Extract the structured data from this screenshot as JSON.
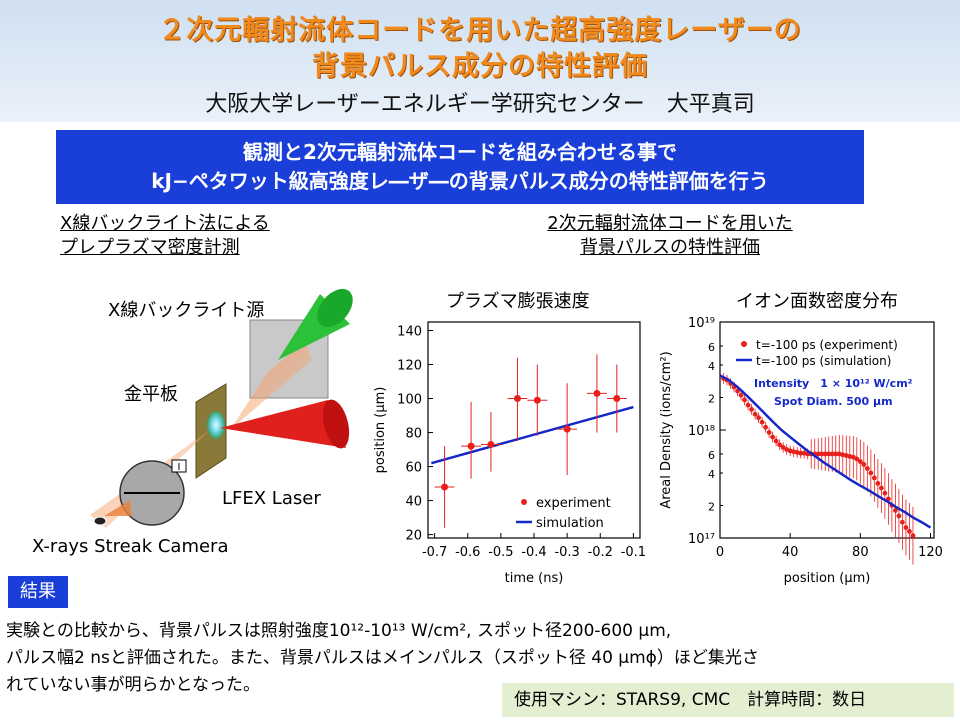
{
  "header": {
    "title_line1": "２次元輻射流体コードを用いた超高強度レーザーの",
    "title_line2": "背景パルス成分の特性評価",
    "author": "大阪大学レーザーエネルギー学研究センター　大平真司"
  },
  "banner": {
    "line1": "観測と2次元輻射流体コードを組み合わせる事で",
    "line2": "kJ−ペタワット級高強度レ―ザ―の背景パルス成分の特性評価を行う"
  },
  "left_section": {
    "line1": "X線バックライト法による",
    "line2": "プレプラズマ密度計測"
  },
  "right_section": {
    "line1": "2次元輻射流体コードを用いた",
    "line2": "背景パルスの特性評価"
  },
  "setup": {
    "backlight_label": "X線バックライト源",
    "target_label": "金平板",
    "laser_label": "LFEX Laser",
    "camera_label": "X-rays Streak Camera",
    "box_label": "I"
  },
  "chart1_title": "プラズマ膨張速度",
  "chart2_title": "イオン面数密度分布",
  "chart_data": [
    {
      "type": "scatter",
      "xlabel": "time (ns)",
      "ylabel": "position (μm)",
      "xlim": [
        -0.72,
        -0.08
      ],
      "ylim": [
        18,
        145
      ],
      "xticks": [
        -0.7,
        -0.6,
        -0.5,
        -0.4,
        -0.3,
        -0.2,
        -0.1
      ],
      "xtick_labels": [
        "-0.7",
        "-0.6",
        "-0.5",
        "-0.4",
        "-0.3",
        "-0.2",
        "-0.1"
      ],
      "yticks": [
        20,
        40,
        60,
        80,
        100,
        120,
        140
      ],
      "legend_position": "bottom-right",
      "series": [
        {
          "name": "experiment",
          "color": "#e8201c",
          "points": [
            {
              "x": -0.67,
              "y": 48,
              "xerr": 0.03,
              "ylo": 24,
              "yhi": 72
            },
            {
              "x": -0.59,
              "y": 72,
              "xerr": 0.03,
              "ylo": 53,
              "yhi": 98
            },
            {
              "x": -0.53,
              "y": 73,
              "xerr": 0.03,
              "ylo": 57,
              "yhi": 92
            },
            {
              "x": -0.45,
              "y": 100,
              "xerr": 0.03,
              "ylo": 75,
              "yhi": 124
            },
            {
              "x": -0.39,
              "y": 99,
              "xerr": 0.03,
              "ylo": 78,
              "yhi": 120
            },
            {
              "x": -0.3,
              "y": 82,
              "xerr": 0.03,
              "ylo": 55,
              "yhi": 109
            },
            {
              "x": -0.21,
              "y": 103,
              "xerr": 0.03,
              "ylo": 80,
              "yhi": 126
            },
            {
              "x": -0.15,
              "y": 100,
              "xerr": 0.03,
              "ylo": 80,
              "yhi": 120
            }
          ]
        },
        {
          "name": "simulation",
          "color": "#1428c8",
          "line": [
            [
              -0.71,
              62
            ],
            [
              -0.1,
              95
            ]
          ]
        }
      ]
    },
    {
      "type": "scatter",
      "xlabel": "position (μm)",
      "ylabel": "Areal Density (ions/cm²)",
      "xlim": [
        0,
        122
      ],
      "ylog": true,
      "ylim": [
        1e+17,
        1e+19
      ],
      "xticks": [
        0,
        40,
        80,
        120
      ],
      "ytick_labels": [
        "10¹⁷",
        "2",
        "4",
        "6",
        "10¹⁸",
        "2",
        "4",
        "6",
        "10¹⁹"
      ],
      "legend_position": "top-right",
      "annotation_line1": "Intensity　1 × 10¹² W/cm²",
      "annotation_line2": "Spot Diam.  500 μm",
      "series": [
        {
          "name": "t=-100 ps (experiment)",
          "color": "#e8201c",
          "x": [
            2,
            4,
            6,
            8,
            10,
            12,
            14,
            16,
            18,
            20,
            22,
            24,
            26,
            28,
            30,
            32,
            34,
            36,
            38,
            40,
            42,
            44,
            46,
            48,
            50,
            52,
            54,
            56,
            58,
            60,
            62,
            64,
            66,
            68,
            70,
            72,
            74,
            76,
            78,
            80,
            82,
            84,
            86,
            88,
            90,
            92,
            94,
            96,
            98,
            100,
            102,
            104,
            106,
            108,
            110
          ],
          "y": [
            3e+18,
            2.9e+18,
            2.7e+18,
            2.5e+18,
            2.3e+18,
            2.1e+18,
            1.9e+18,
            1.7e+18,
            1.55e+18,
            1.4e+18,
            1.3e+18,
            1.18e+18,
            1.06e+18,
            9.5e+17,
            8.6e+17,
            7.9e+17,
            7.3e+17,
            6.9e+17,
            6.6e+17,
            6.4e+17,
            6.3e+17,
            6.2e+17,
            6.1e+17,
            6.1e+17,
            6e+17,
            6e+17,
            6e+17,
            6e+17,
            6e+17,
            6e+17,
            6e+17,
            6e+17,
            6e+17,
            6e+17,
            5.9e+17,
            5.8e+17,
            5.7e+17,
            5.6e+17,
            5.4e+17,
            5.1e+17,
            4.8e+17,
            4.4e+17,
            4e+17,
            3.6e+17,
            3.2e+17,
            2.9e+17,
            2.6e+17,
            2.3e+17,
            2e+17,
            1.8e+17,
            1.6e+17,
            1.4e+17,
            1.25e+17,
            1.15e+17,
            1.05e+17
          ]
        },
        {
          "name": "t=-100 ps (simulation)",
          "color": "#1428c8",
          "x": [
            0,
            5,
            10,
            15,
            20,
            25,
            30,
            35,
            40,
            45,
            50,
            55,
            60,
            65,
            70,
            75,
            80,
            85,
            90,
            95,
            100,
            105,
            110,
            115,
            120
          ],
          "y": [
            3.2e+18,
            2.9e+18,
            2.5e+18,
            2.1e+18,
            1.75e+18,
            1.45e+18,
            1.2e+18,
            1e+18,
            8.6e+17,
            7.4e+17,
            6.4e+17,
            5.6e+17,
            4.9e+17,
            4.35e+17,
            3.85e+17,
            3.4e+17,
            3.05e+17,
            2.75e+17,
            2.45e+17,
            2.2e+17,
            1.95e+17,
            1.75e+17,
            1.55e+17,
            1.4e+17,
            1.25e+17
          ]
        }
      ]
    }
  ],
  "results": {
    "tag": "結果",
    "line1": "実験との比較から、背景パルスは照射強度10¹²-10¹³ W/cm², スポット径200-600 μm,",
    "line2": "パルス幅2 nsと評価された。また、背景パルスはメインパルス（スポット径 40 μmϕ）ほど集光さ",
    "line3": "れていない事が明らかとなった。"
  },
  "machine": {
    "text": "使用マシン：STARS9, CMC　計算時間：数日"
  }
}
